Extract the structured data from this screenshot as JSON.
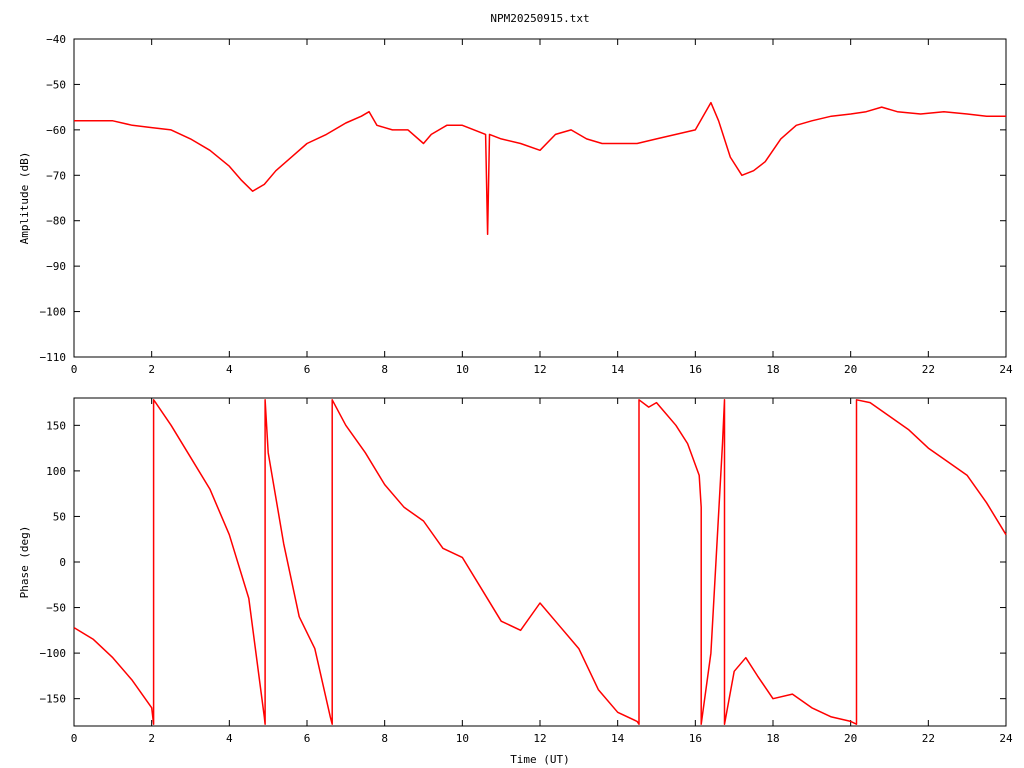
{
  "title": "NPM20250915.txt",
  "trace_color": "#ff0000",
  "chart_data": [
    {
      "type": "line",
      "ylabel": "Amplitude (dB)",
      "xlabel": "",
      "xlim": [
        0,
        24
      ],
      "ylim": [
        -110,
        -40
      ],
      "xticks": [
        0,
        2,
        4,
        6,
        8,
        10,
        12,
        14,
        16,
        18,
        20,
        22,
        24
      ],
      "yticks": [
        -110,
        -100,
        -90,
        -80,
        -70,
        -60,
        -50,
        -40
      ],
      "ytick_labels": [
        "−110",
        "−100",
        "−90",
        "−80",
        "−70",
        "−60",
        "−50",
        "−40"
      ],
      "series": [
        {
          "x": [
            0,
            0.5,
            1.0,
            1.5,
            2.0,
            2.5,
            3.0,
            3.5,
            4.0,
            4.3,
            4.6,
            4.9,
            5.2,
            5.6,
            6.0,
            6.5,
            7.0,
            7.4,
            7.6,
            7.8,
            8.2,
            8.6,
            9.0,
            9.2,
            9.6,
            10.0,
            10.6,
            10.65,
            10.7,
            11.0,
            11.5,
            12.0,
            12.4,
            12.8,
            13.2,
            13.6,
            14.0,
            14.5,
            15.0,
            15.5,
            16.0,
            16.2,
            16.4,
            16.6,
            16.9,
            17.2,
            17.5,
            17.8,
            18.2,
            18.6,
            19.0,
            19.5,
            20.0,
            20.4,
            20.8,
            21.2,
            21.8,
            22.4,
            23.0,
            23.5,
            24.0
          ],
          "y": [
            -58,
            -58,
            -58,
            -59,
            -59.5,
            -60,
            -62,
            -64.5,
            -68,
            -71,
            -73.5,
            -72,
            -69,
            -66,
            -63,
            -61,
            -58.5,
            -57,
            -56,
            -59,
            -60,
            -60,
            -63,
            -61,
            -59,
            -59,
            -61,
            -83,
            -61,
            -62,
            -63,
            -64.5,
            -61,
            -60,
            -62,
            -63,
            -63,
            -63,
            -62,
            -61,
            -60,
            -57,
            -54,
            -58,
            -66,
            -70,
            -69,
            -67,
            -62,
            -59,
            -58,
            -57,
            -56.5,
            -56,
            -55,
            -56,
            -56.5,
            -56,
            -56.5,
            -57,
            -57
          ]
        }
      ]
    },
    {
      "type": "line",
      "ylabel": "Phase (deg)",
      "xlabel": "Time (UT)",
      "xlim": [
        0,
        24
      ],
      "ylim": [
        -180,
        180
      ],
      "xticks": [
        0,
        2,
        4,
        6,
        8,
        10,
        12,
        14,
        16,
        18,
        20,
        22,
        24
      ],
      "yticks": [
        -150,
        -100,
        -50,
        0,
        50,
        100,
        150
      ],
      "ytick_labels": [
        "−150",
        "−100",
        "−50",
        "0",
        "50",
        "100",
        "150"
      ],
      "series": [
        {
          "x": [
            0,
            0.5,
            1.0,
            1.5,
            2.0,
            2.05,
            2.05,
            2.1,
            2.5,
            3.0,
            3.5,
            4.0,
            4.5,
            4.9,
            4.92,
            4.92,
            5.0,
            5.4,
            5.8,
            6.2,
            6.6,
            6.65,
            6.65,
            7.0,
            7.5,
            8.0,
            8.5,
            9.0,
            9.5,
            10.0,
            10.5,
            11.0,
            11.5,
            12.0,
            12.5,
            13.0,
            13.5,
            14.0,
            14.5,
            14.55,
            14.55,
            14.8,
            15.0,
            15.2,
            15.5,
            15.8,
            16.1,
            16.15,
            16.15,
            16.4,
            16.7,
            16.75,
            16.75,
            17.0,
            17.3,
            17.6,
            18.0,
            18.5,
            19.0,
            19.5,
            20.0,
            20.15,
            20.15,
            20.5,
            21.0,
            21.5,
            22.0,
            22.5,
            23.0,
            23.5,
            24.0
          ],
          "y": [
            -72,
            -85,
            -105,
            -130,
            -160,
            -178,
            178,
            175,
            150,
            115,
            80,
            30,
            -40,
            -170,
            -178,
            178,
            120,
            20,
            -60,
            -95,
            -170,
            -178,
            178,
            150,
            120,
            85,
            60,
            45,
            15,
            5,
            -30,
            -65,
            -75,
            -45,
            -70,
            -95,
            -140,
            -165,
            -175,
            -178,
            178,
            170,
            175,
            165,
            150,
            130,
            95,
            60,
            -178,
            -100,
            130,
            178,
            -178,
            -120,
            -105,
            -125,
            -150,
            -145,
            -160,
            -170,
            -175,
            -178,
            178,
            175,
            160,
            145,
            125,
            110,
            95,
            65,
            30
          ]
        }
      ]
    }
  ]
}
